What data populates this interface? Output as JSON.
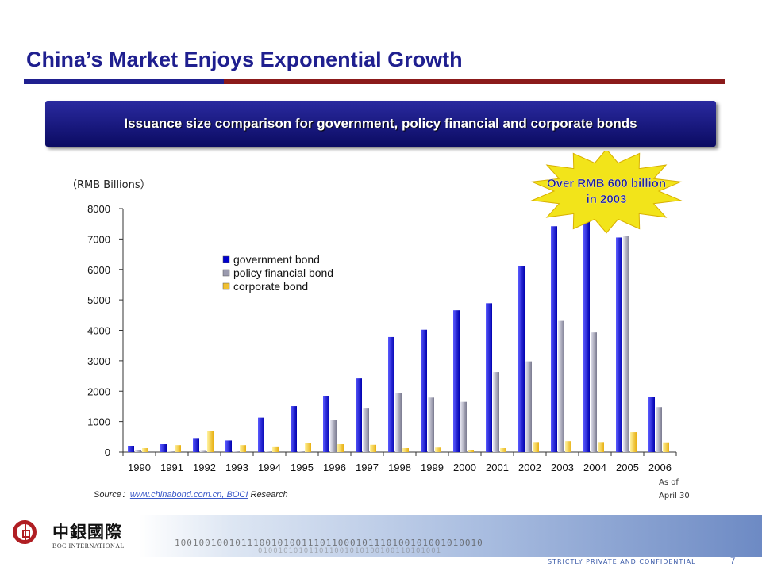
{
  "slide": {
    "title": "China’s Market Enjoys Exponential Growth",
    "banner": "Issuance size comparison for government, policy financial and corporate bonds",
    "unit_label": "（RMB Billions）",
    "callout_line1": "Over RMB 600 billion",
    "callout_line2": "in 2003",
    "source_prefix": "Source：",
    "source_link": "www.chinabond.com.cn,  BOCI",
    "source_suffix": " Research",
    "as_of_line1": "As of",
    "as_of_line2": "April 30",
    "logo_cn": "中銀國際",
    "logo_en": "BOC INTERNATIONAL",
    "binary_text": "100100100101110010100111011000101110100101001010010",
    "binary_text2": "010010101011011001010100100110101001",
    "confidential": "STRICTLY PRIVATE AND CONFIDENTIAL",
    "page_number": "7"
  },
  "colors": {
    "title": "#1f1f8f",
    "government": "#0000cc",
    "policy": "#9a9aae",
    "corporate": "#f0c030",
    "callout": "#f2e41a"
  },
  "chart_data": {
    "type": "bar",
    "categories": [
      "1990",
      "1991",
      "1992",
      "1993",
      "1994",
      "1995",
      "1996",
      "1997",
      "1998",
      "1999",
      "2000",
      "2001",
      "2002",
      "2003",
      "2004",
      "2005",
      "2006"
    ],
    "series": [
      {
        "name": "government bond",
        "values": [
          200,
          260,
          460,
          380,
          1130,
          1510,
          1850,
          2420,
          3780,
          4020,
          4660,
          4890,
          6120,
          7420,
          7760,
          7050,
          1820
        ]
      },
      {
        "name": "policy financial bond",
        "values": [
          70,
          20,
          40,
          20,
          20,
          20,
          1050,
          1430,
          1950,
          1790,
          1650,
          2630,
          2980,
          4310,
          3930,
          7100,
          1480
        ]
      },
      {
        "name": "corporate bond",
        "values": [
          130,
          230,
          680,
          230,
          160,
          300,
          260,
          240,
          130,
          150,
          70,
          130,
          330,
          360,
          330,
          650,
          320
        ]
      }
    ],
    "yticks": [
      0,
      1000,
      2000,
      3000,
      4000,
      5000,
      6000,
      7000,
      8000
    ],
    "ylim": [
      0,
      8000
    ],
    "legend_position": "upper-left",
    "grid": false
  }
}
